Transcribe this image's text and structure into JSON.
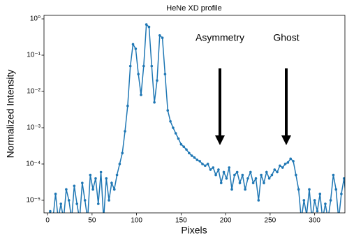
{
  "chart_data": {
    "type": "line",
    "title": "HeNe XD profile",
    "xlabel": "Pixels",
    "ylabel": "Normalized Intensity",
    "annotations": [
      "Asymmetry",
      "Ghost"
    ],
    "log_y": true,
    "grid": false,
    "xlim": [
      -4,
      334
    ],
    "xticks": [
      0,
      50,
      100,
      150,
      200,
      250,
      300
    ],
    "ylim": [
      4.5e-06,
      1.25
    ],
    "yticks": [
      {
        "value": 1e-05,
        "label": "10⁻⁵"
      },
      {
        "value": 0.0001,
        "label": "10⁻⁴"
      },
      {
        "value": 0.001,
        "label": "10⁻³"
      },
      {
        "value": 0.01,
        "label": "10⁻²"
      },
      {
        "value": 0.1,
        "label": "10⁻¹"
      },
      {
        "value": 1,
        "label": "10⁰"
      }
    ],
    "x": [
      0,
      3,
      6,
      9,
      12,
      15,
      18,
      21,
      24,
      27,
      30,
      33,
      36,
      39,
      42,
      45,
      48,
      51,
      54,
      57,
      60,
      63,
      66,
      69,
      72,
      75,
      78,
      81,
      84,
      87,
      90,
      93,
      96,
      99,
      102,
      105,
      108,
      111,
      114,
      117,
      120,
      123,
      126,
      129,
      132,
      135,
      138,
      141,
      144,
      147,
      150,
      153,
      156,
      159,
      162,
      165,
      168,
      171,
      174,
      177,
      180,
      183,
      186,
      189,
      192,
      195,
      198,
      201,
      204,
      207,
      210,
      213,
      216,
      219,
      222,
      225,
      228,
      231,
      234,
      237,
      240,
      243,
      246,
      249,
      252,
      255,
      258,
      261,
      264,
      267,
      270,
      273,
      276,
      279,
      282,
      285,
      288,
      291,
      294,
      297,
      300,
      303,
      306,
      309,
      312,
      315,
      318,
      321,
      324,
      327,
      330,
      333,
      336,
      339
    ],
    "series": [
      {
        "color": "#1f77b4",
        "values": [
          3e-06,
          5e-06,
          3e-06,
          1.5e-05,
          3e-06,
          8e-06,
          3e-06,
          2e-05,
          1e-05,
          3e-06,
          2.5e-05,
          8e-06,
          3e-06,
          3e-05,
          1e-05,
          3e-06,
          5e-05,
          2e-05,
          4e-05,
          8e-06,
          6e-05,
          3e-06,
          4e-05,
          1e-05,
          3e-05,
          2e-05,
          5e-05,
          0.0001,
          0.0002,
          0.0008,
          0.004,
          0.05,
          0.2,
          0.15,
          0.03,
          0.008,
          0.05,
          0.7,
          0.6,
          0.05,
          0.005,
          0.02,
          0.35,
          0.3,
          0.03,
          0.003,
          0.0015,
          0.001,
          0.0007,
          0.0005,
          0.00035,
          0.0003,
          0.00025,
          0.0002,
          0.00017,
          0.00015,
          0.00013,
          0.00012,
          0.0001,
          9e-05,
          0.0001,
          7e-05,
          8e-05,
          5e-05,
          7e-05,
          3e-05,
          6e-05,
          4e-05,
          8e-05,
          2e-05,
          5e-05,
          6e-05,
          3e-05,
          5e-05,
          2e-05,
          4e-05,
          6e-05,
          3e-05,
          4e-05,
          1e-05,
          5e-05,
          3e-05,
          6e-05,
          4e-05,
          5e-05,
          7e-05,
          6e-05,
          9e-05,
          8e-05,
          0.0001,
          0.00011,
          0.00014,
          0.00012,
          5e-05,
          2e-05,
          3e-06,
          1e-05,
          4e-06,
          2e-05,
          3e-06,
          1e-05,
          5e-06,
          1.5e-05,
          3e-06,
          8e-06,
          3e-06,
          1e-05,
          5e-05,
          2e-05,
          3e-06,
          1.5e-05,
          4e-05,
          8e-06,
          1e-05
        ]
      }
    ]
  }
}
